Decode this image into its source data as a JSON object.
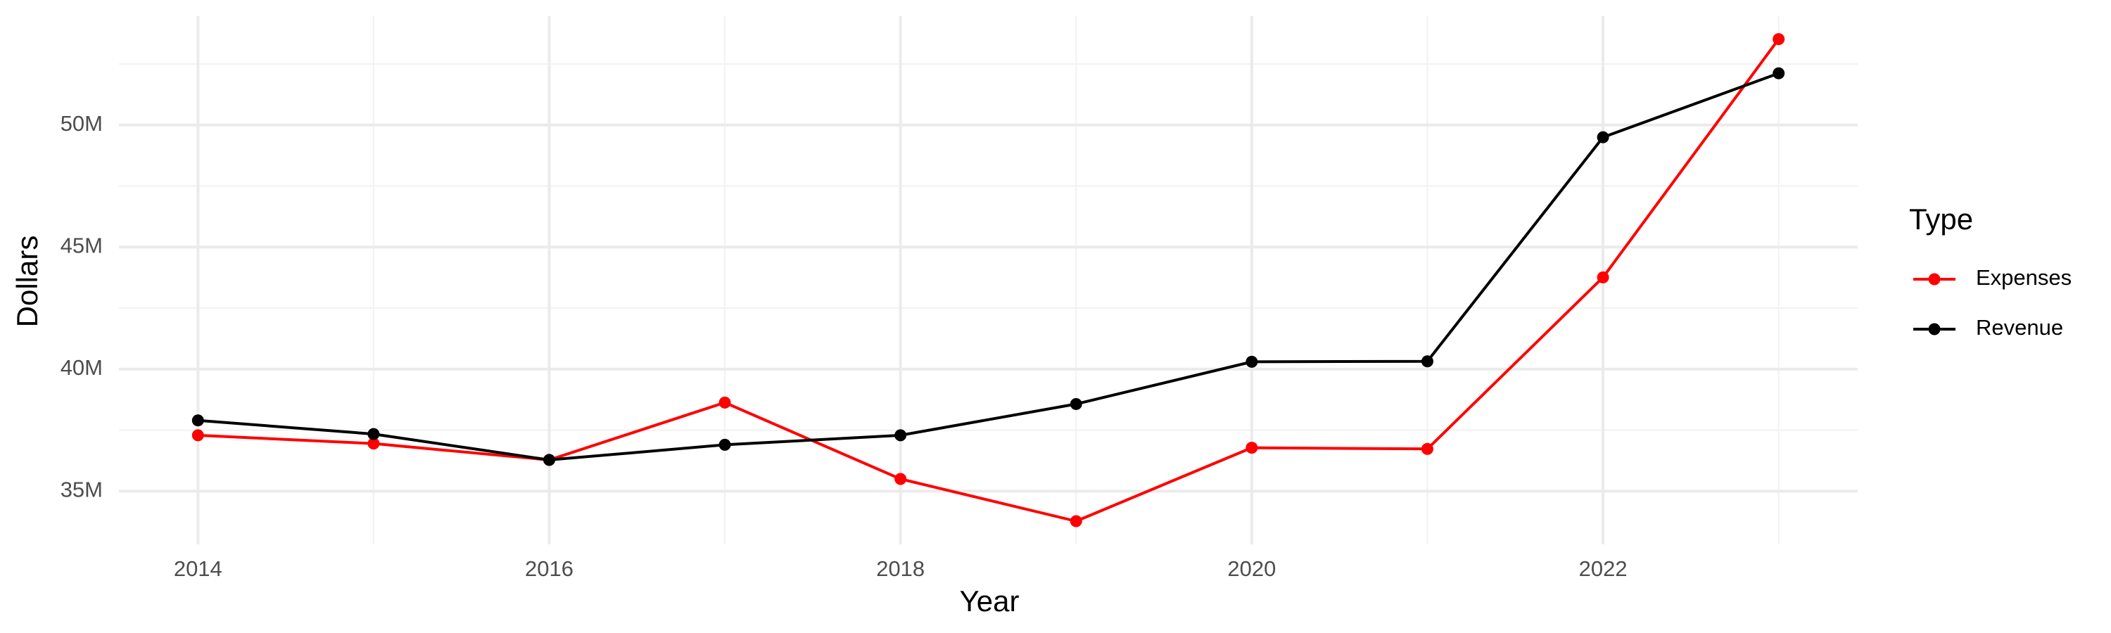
{
  "chart_data": {
    "type": "line",
    "x_label": "Year",
    "y_label": "Dollars",
    "legend_title": "Type",
    "legend": "right",
    "grid": true,
    "x": [
      2014,
      2015,
      2016,
      2017,
      2018,
      2019,
      2020,
      2021,
      2022,
      2023
    ],
    "series": [
      {
        "name": "Expenses",
        "color": "#ff0000",
        "values": [
          37290000,
          36950000,
          36280000,
          38630000,
          35500000,
          33770000,
          36780000,
          36730000,
          43760000,
          53520000
        ]
      },
      {
        "name": "Revenue",
        "color": "#000000",
        "values": [
          37900000,
          37340000,
          36280000,
          36900000,
          37290000,
          38570000,
          40300000,
          40320000,
          49500000,
          52120000
        ]
      }
    ],
    "xlim": [
      2013.55,
      2023.45
    ],
    "xticks": [
      2014,
      2016,
      2018,
      2020,
      2022
    ],
    "ylim": [
      32820000,
      54460000
    ],
    "yticks": [
      {
        "value": 35000000,
        "label": "35M"
      },
      {
        "value": 40000000,
        "label": "40M"
      },
      {
        "value": 45000000,
        "label": "45M"
      },
      {
        "value": 50000000,
        "label": "50M"
      }
    ]
  }
}
